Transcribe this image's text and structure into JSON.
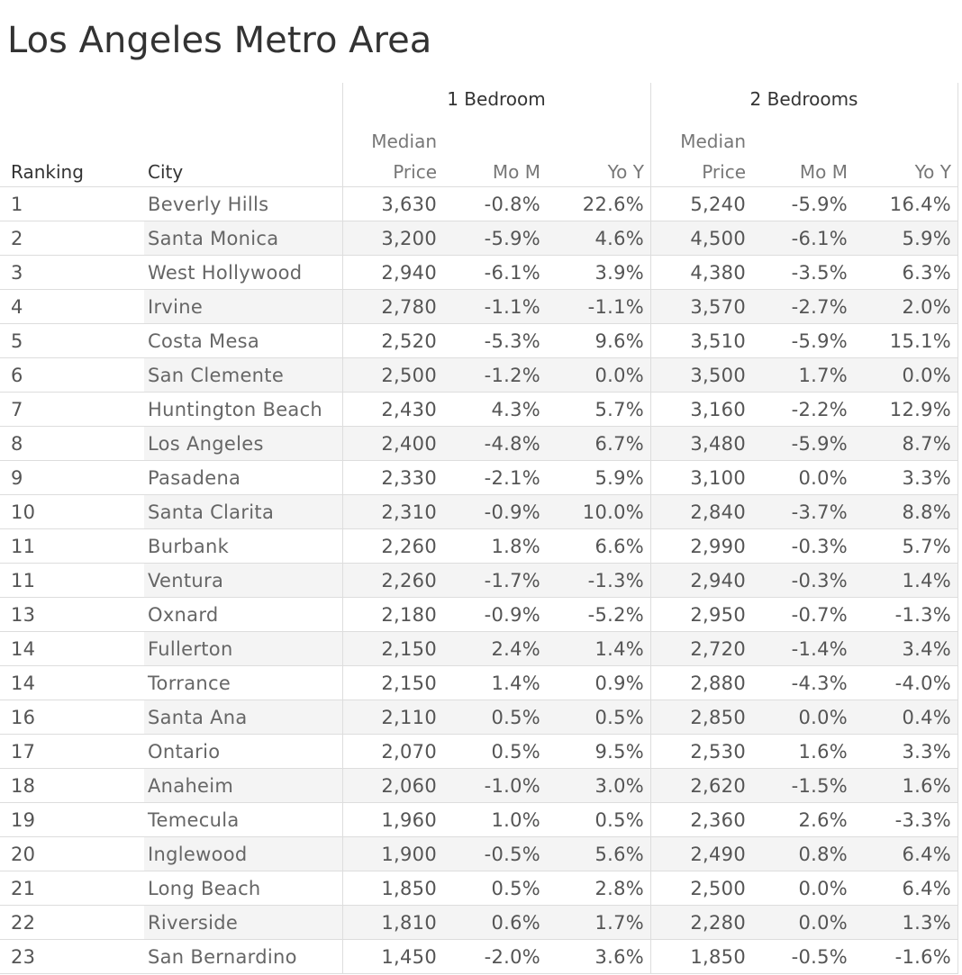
{
  "title": "Los Angeles Metro Area",
  "table": {
    "groups": [
      "1 Bedroom",
      "2 Bedrooms"
    ],
    "columns": [
      "Ranking",
      "City",
      "Median Price",
      "Mo M",
      "Yo Y",
      "Median Price",
      "Mo M",
      "Yo Y"
    ],
    "rows": [
      [
        "1",
        "Beverly Hills",
        "3,630",
        "-0.8%",
        "22.6%",
        "5,240",
        "-5.9%",
        "16.4%"
      ],
      [
        "2",
        "Santa Monica",
        "3,200",
        "-5.9%",
        "4.6%",
        "4,500",
        "-6.1%",
        "5.9%"
      ],
      [
        "3",
        "West Hollywood",
        "2,940",
        "-6.1%",
        "3.9%",
        "4,380",
        "-3.5%",
        "6.3%"
      ],
      [
        "4",
        "Irvine",
        "2,780",
        "-1.1%",
        "-1.1%",
        "3,570",
        "-2.7%",
        "2.0%"
      ],
      [
        "5",
        "Costa Mesa",
        "2,520",
        "-5.3%",
        "9.6%",
        "3,510",
        "-5.9%",
        "15.1%"
      ],
      [
        "6",
        "San Clemente",
        "2,500",
        "-1.2%",
        "0.0%",
        "3,500",
        "1.7%",
        "0.0%"
      ],
      [
        "7",
        "Huntington Beach",
        "2,430",
        "4.3%",
        "5.7%",
        "3,160",
        "-2.2%",
        "12.9%"
      ],
      [
        "8",
        "Los Angeles",
        "2,400",
        "-4.8%",
        "6.7%",
        "3,480",
        "-5.9%",
        "8.7%"
      ],
      [
        "9",
        "Pasadena",
        "2,330",
        "-2.1%",
        "5.9%",
        "3,100",
        "0.0%",
        "3.3%"
      ],
      [
        "10",
        "Santa Clarita",
        "2,310",
        "-0.9%",
        "10.0%",
        "2,840",
        "-3.7%",
        "8.8%"
      ],
      [
        "11",
        "Burbank",
        "2,260",
        "1.8%",
        "6.6%",
        "2,990",
        "-0.3%",
        "5.7%"
      ],
      [
        "11",
        "Ventura",
        "2,260",
        "-1.7%",
        "-1.3%",
        "2,940",
        "-0.3%",
        "1.4%"
      ],
      [
        "13",
        "Oxnard",
        "2,180",
        "-0.9%",
        "-5.2%",
        "2,950",
        "-0.7%",
        "-1.3%"
      ],
      [
        "14",
        "Fullerton",
        "2,150",
        "2.4%",
        "1.4%",
        "2,720",
        "-1.4%",
        "3.4%"
      ],
      [
        "14",
        "Torrance",
        "2,150",
        "1.4%",
        "0.9%",
        "2,880",
        "-4.3%",
        "-4.0%"
      ],
      [
        "16",
        "Santa Ana",
        "2,110",
        "0.5%",
        "0.5%",
        "2,850",
        "0.0%",
        "0.4%"
      ],
      [
        "17",
        "Ontario",
        "2,070",
        "0.5%",
        "9.5%",
        "2,530",
        "1.6%",
        "3.3%"
      ],
      [
        "18",
        "Anaheim",
        "2,060",
        "-1.0%",
        "3.0%",
        "2,620",
        "-1.5%",
        "1.6%"
      ],
      [
        "19",
        "Temecula",
        "1,960",
        "1.0%",
        "0.5%",
        "2,360",
        "2.6%",
        "-3.3%"
      ],
      [
        "20",
        "Inglewood",
        "1,900",
        "-0.5%",
        "5.6%",
        "2,490",
        "0.8%",
        "6.4%"
      ],
      [
        "21",
        "Long Beach",
        "1,850",
        "0.5%",
        "2.8%",
        "2,500",
        "0.0%",
        "6.4%"
      ],
      [
        "22",
        "Riverside",
        "1,810",
        "0.6%",
        "1.7%",
        "2,280",
        "0.0%",
        "1.3%"
      ],
      [
        "23",
        "San Bernardino",
        "1,450",
        "-2.0%",
        "3.6%",
        "1,850",
        "-0.5%",
        "-1.6%"
      ]
    ]
  }
}
